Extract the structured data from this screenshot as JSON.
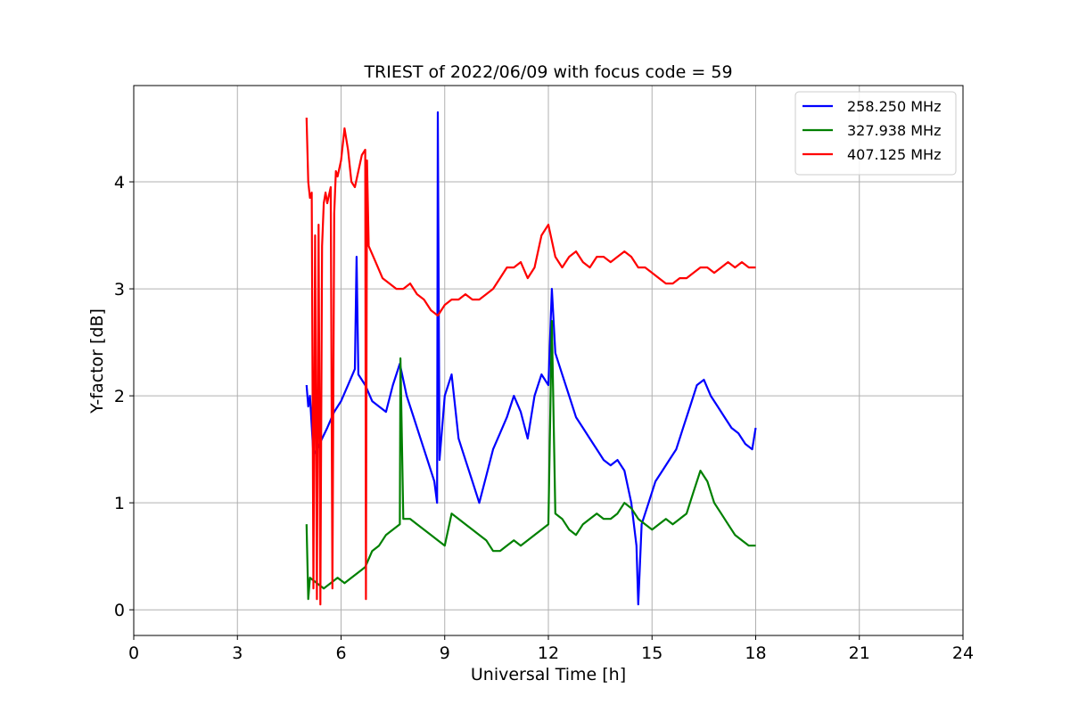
{
  "chart_data": {
    "type": "line",
    "title": "TRIEST of 2022/06/09 with focus code = 59",
    "xlabel": "Universal Time [h]",
    "ylabel": "Y-factor [dB]",
    "xlim": [
      0,
      24
    ],
    "ylim": [
      -0.24,
      4.9
    ],
    "xticks": [
      0,
      3,
      6,
      9,
      12,
      15,
      18,
      21,
      24
    ],
    "yticks": [
      0,
      1,
      2,
      3,
      4
    ],
    "grid": true,
    "legend_position": "top-right",
    "series": [
      {
        "name": "258.250 MHz",
        "color": "#0000ff",
        "x": [
          5.0,
          5.05,
          5.1,
          5.2,
          5.3,
          5.45,
          5.6,
          5.8,
          6.0,
          6.2,
          6.4,
          6.45,
          6.5,
          6.7,
          6.9,
          7.1,
          7.3,
          7.5,
          7.7,
          7.9,
          8.1,
          8.3,
          8.5,
          8.7,
          8.78,
          8.8,
          8.85,
          9.0,
          9.2,
          9.4,
          9.6,
          9.8,
          10.0,
          10.2,
          10.4,
          10.6,
          10.8,
          11.0,
          11.2,
          11.4,
          11.6,
          11.8,
          12.0,
          12.1,
          12.2,
          12.4,
          12.6,
          12.8,
          13.0,
          13.2,
          13.4,
          13.6,
          13.8,
          14.0,
          14.2,
          14.4,
          14.55,
          14.6,
          14.7,
          14.9,
          15.1,
          15.3,
          15.5,
          15.7,
          15.9,
          16.1,
          16.3,
          16.5,
          16.7,
          16.9,
          17.1,
          17.3,
          17.5,
          17.7,
          17.9,
          18.0
        ],
        "y": [
          2.1,
          1.9,
          2.0,
          1.45,
          1.5,
          1.6,
          1.7,
          1.85,
          1.95,
          2.1,
          2.25,
          3.3,
          2.2,
          2.1,
          1.95,
          1.9,
          1.85,
          2.1,
          2.3,
          2.0,
          1.8,
          1.6,
          1.4,
          1.2,
          1.0,
          4.65,
          1.4,
          2.0,
          2.2,
          1.6,
          1.4,
          1.2,
          1.0,
          1.25,
          1.5,
          1.65,
          1.8,
          2.0,
          1.85,
          1.6,
          2.0,
          2.2,
          2.1,
          3.0,
          2.4,
          2.2,
          2.0,
          1.8,
          1.7,
          1.6,
          1.5,
          1.4,
          1.35,
          1.4,
          1.3,
          1.0,
          0.6,
          0.05,
          0.8,
          1.0,
          1.2,
          1.3,
          1.4,
          1.5,
          1.7,
          1.9,
          2.1,
          2.15,
          2.0,
          1.9,
          1.8,
          1.7,
          1.65,
          1.55,
          1.5,
          1.7
        ]
      },
      {
        "name": "327.938 MHz",
        "color": "#008000",
        "x": [
          5.0,
          5.05,
          5.1,
          5.3,
          5.5,
          5.7,
          5.9,
          6.1,
          6.3,
          6.5,
          6.7,
          6.9,
          7.1,
          7.3,
          7.5,
          7.7,
          7.72,
          7.8,
          8.0,
          8.2,
          8.4,
          8.6,
          8.8,
          9.0,
          9.2,
          9.4,
          9.6,
          9.8,
          10.0,
          10.2,
          10.4,
          10.6,
          10.8,
          11.0,
          11.2,
          11.4,
          11.6,
          11.8,
          12.0,
          12.1,
          12.2,
          12.4,
          12.6,
          12.8,
          13.0,
          13.2,
          13.4,
          13.6,
          13.8,
          14.0,
          14.2,
          14.4,
          14.6,
          14.8,
          15.0,
          15.2,
          15.4,
          15.6,
          15.8,
          16.0,
          16.2,
          16.4,
          16.6,
          16.8,
          17.0,
          17.2,
          17.4,
          17.6,
          17.8,
          18.0
        ],
        "y": [
          0.8,
          0.1,
          0.3,
          0.25,
          0.2,
          0.25,
          0.3,
          0.25,
          0.3,
          0.35,
          0.4,
          0.55,
          0.6,
          0.7,
          0.75,
          0.8,
          2.35,
          0.85,
          0.85,
          0.8,
          0.75,
          0.7,
          0.65,
          0.6,
          0.9,
          0.85,
          0.8,
          0.75,
          0.7,
          0.65,
          0.55,
          0.55,
          0.6,
          0.65,
          0.6,
          0.65,
          0.7,
          0.75,
          0.8,
          2.7,
          0.9,
          0.85,
          0.75,
          0.7,
          0.8,
          0.85,
          0.9,
          0.85,
          0.85,
          0.9,
          1.0,
          0.95,
          0.85,
          0.8,
          0.75,
          0.8,
          0.85,
          0.8,
          0.85,
          0.9,
          1.1,
          1.3,
          1.2,
          1.0,
          0.9,
          0.8,
          0.7,
          0.65,
          0.6,
          0.6
        ]
      },
      {
        "name": "407.125 MHz",
        "color": "#ff0000",
        "x": [
          5.0,
          5.05,
          5.1,
          5.15,
          5.2,
          5.25,
          5.3,
          5.35,
          5.4,
          5.45,
          5.5,
          5.55,
          5.6,
          5.7,
          5.75,
          5.8,
          5.85,
          5.9,
          6.0,
          6.1,
          6.2,
          6.3,
          6.4,
          6.5,
          6.6,
          6.7,
          6.72,
          6.75,
          6.8,
          7.0,
          7.2,
          7.4,
          7.6,
          7.8,
          8.0,
          8.2,
          8.4,
          8.6,
          8.8,
          9.0,
          9.2,
          9.4,
          9.6,
          9.8,
          10.0,
          10.2,
          10.4,
          10.6,
          10.8,
          11.0,
          11.2,
          11.4,
          11.6,
          11.8,
          12.0,
          12.2,
          12.4,
          12.6,
          12.8,
          13.0,
          13.2,
          13.4,
          13.6,
          13.8,
          14.0,
          14.2,
          14.4,
          14.6,
          14.8,
          15.0,
          15.2,
          15.4,
          15.6,
          15.8,
          16.0,
          16.2,
          16.4,
          16.6,
          16.8,
          17.0,
          17.2,
          17.4,
          17.6,
          17.8,
          18.0
        ],
        "y": [
          4.6,
          4.0,
          3.85,
          3.9,
          0.2,
          3.5,
          0.1,
          3.6,
          0.05,
          3.4,
          3.8,
          3.9,
          3.8,
          3.95,
          0.2,
          3.7,
          4.1,
          4.05,
          4.2,
          4.5,
          4.3,
          4.0,
          3.95,
          4.1,
          4.25,
          4.3,
          0.1,
          4.2,
          3.4,
          3.25,
          3.1,
          3.05,
          3.0,
          3.0,
          3.05,
          2.95,
          2.9,
          2.8,
          2.75,
          2.85,
          2.9,
          2.9,
          2.95,
          2.9,
          2.9,
          2.95,
          3.0,
          3.1,
          3.2,
          3.2,
          3.25,
          3.1,
          3.2,
          3.5,
          3.6,
          3.3,
          3.2,
          3.3,
          3.35,
          3.25,
          3.2,
          3.3,
          3.3,
          3.25,
          3.3,
          3.35,
          3.3,
          3.2,
          3.2,
          3.15,
          3.1,
          3.05,
          3.05,
          3.1,
          3.1,
          3.15,
          3.2,
          3.2,
          3.15,
          3.2,
          3.25,
          3.2,
          3.25,
          3.2,
          3.2
        ]
      }
    ]
  }
}
